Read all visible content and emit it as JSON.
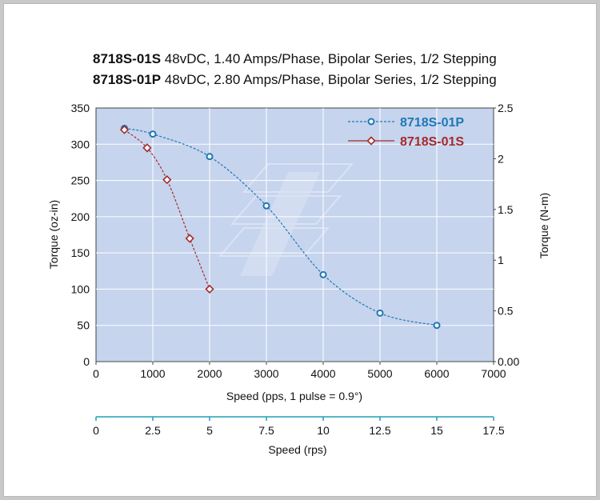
{
  "titles": [
    {
      "model": "8718S-01S",
      "desc": " 48vDC, 1.40 Amps/Phase, Bipolar Series, 1/2 Stepping"
    },
    {
      "model": "8718S-01P",
      "desc": " 48vDC, 2.80 Amps/Phase, Bipolar Series, 1/2 Stepping"
    }
  ],
  "colors": {
    "plot_bg": "#c6d4ee",
    "series_p": "#1f77b4",
    "series_s": "#a52a2a",
    "grid": "#ffffff"
  },
  "chart_data": {
    "type": "line",
    "xlabel": "Speed (pps, 1 pulse = 0.9°)",
    "ylabel_left": "Torque (oz-in)",
    "ylabel_right": "Torque (N-m)",
    "xlabel2": "Speed (rps)",
    "xlim": [
      0,
      7000
    ],
    "ylim": [
      0,
      350
    ],
    "x_ticks": [
      "0",
      "1000",
      "2000",
      "3000",
      "4000",
      "5000",
      "6000",
      "7000"
    ],
    "y_ticks_left": [
      "0",
      "50",
      "100",
      "150",
      "200",
      "250",
      "300",
      "350"
    ],
    "y_ticks_right": [
      {
        "value": 0,
        "label": "0.00"
      },
      {
        "value": 0.5,
        "label": "0.5"
      },
      {
        "value": 1,
        "label": "1"
      },
      {
        "value": 1.5,
        "label": "1.5"
      },
      {
        "value": 2,
        "label": "2"
      },
      {
        "value": 2.5,
        "label": "2.5"
      }
    ],
    "right_lim": [
      0,
      2.5
    ],
    "x2_ticks": [
      "0",
      "2.5",
      "5",
      "7.5",
      "10",
      "12.5",
      "15",
      "17.5"
    ],
    "x2_lim": [
      0,
      17.5
    ],
    "series": [
      {
        "name": "8718S-01P",
        "x": [
          500,
          1000,
          2000,
          3000,
          4000,
          5000,
          6000
        ],
        "y": [
          322,
          314,
          283,
          215,
          120,
          67,
          50
        ]
      },
      {
        "name": "8718S-01S",
        "x": [
          500,
          900,
          1250,
          1650,
          2000
        ],
        "y": [
          320,
          295,
          251,
          170,
          100
        ]
      }
    ]
  }
}
